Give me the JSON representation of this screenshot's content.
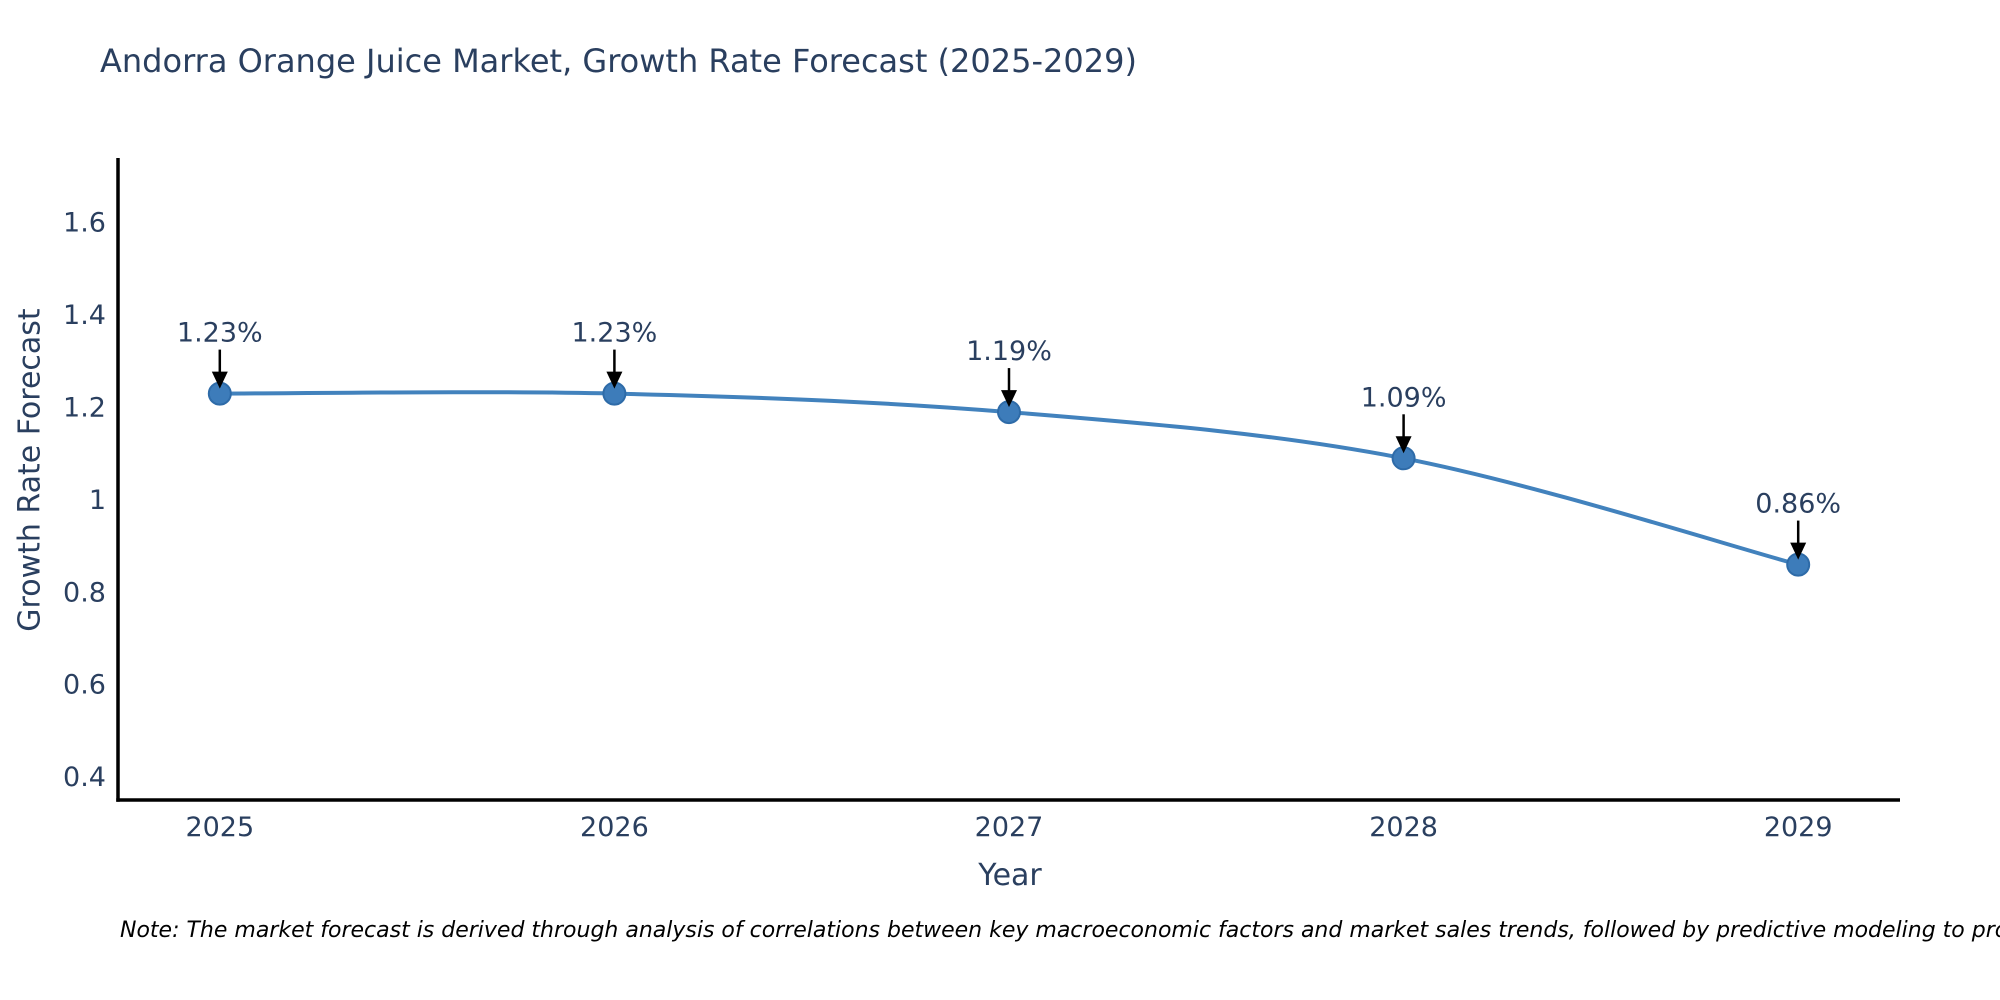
{
  "figure": {
    "title": "Andorra Orange Juice Market, Growth Rate Forecast (2025-2029)",
    "note": "Note: The market forecast is derived through analysis of correlations between key macroeconomic factors and market sales trends, followed by predictive modeling to project future sales"
  },
  "colors": {
    "text": "#2a3f5f",
    "axis_line": "#000000",
    "series_line": "#4282bd",
    "marker_fill": "#3d7cba",
    "marker_edge": "#2e6ba8",
    "annotation_arrow": "#000000",
    "note_text": "#000000",
    "background": "#ffffff"
  },
  "chart_data": {
    "type": "line",
    "title": "Andorra Orange Juice Market, Growth Rate Forecast (2025-2029)",
    "xlabel": "Year",
    "ylabel": "Growth Rate Forecast",
    "x": [
      2025,
      2026,
      2027,
      2028,
      2029
    ],
    "series": [
      {
        "name": "Growth Rate Forecast",
        "values": [
          1.23,
          1.23,
          1.19,
          1.09,
          0.86
        ]
      }
    ],
    "point_labels": [
      "1.23%",
      "1.23%",
      "1.19%",
      "1.09%",
      "0.86%"
    ],
    "xtick_labels": [
      "2025",
      "2026",
      "2027",
      "2028",
      "2029"
    ],
    "ytick_values": [
      1.6,
      1.4,
      1.2,
      1.0,
      0.8,
      0.6,
      0.4
    ],
    "ytick_labels": [
      "1.6",
      "1.4",
      "1.2",
      "1",
      "0.8",
      "0.6",
      "0.4"
    ],
    "xlim": [
      2024.742,
      2029.258
    ],
    "ylim": [
      0.3506,
      1.7398
    ],
    "grid": false,
    "legend": "none",
    "line_shape": "spline",
    "marker": "circle",
    "annotations": "value labels with downward arrows at each data point"
  }
}
